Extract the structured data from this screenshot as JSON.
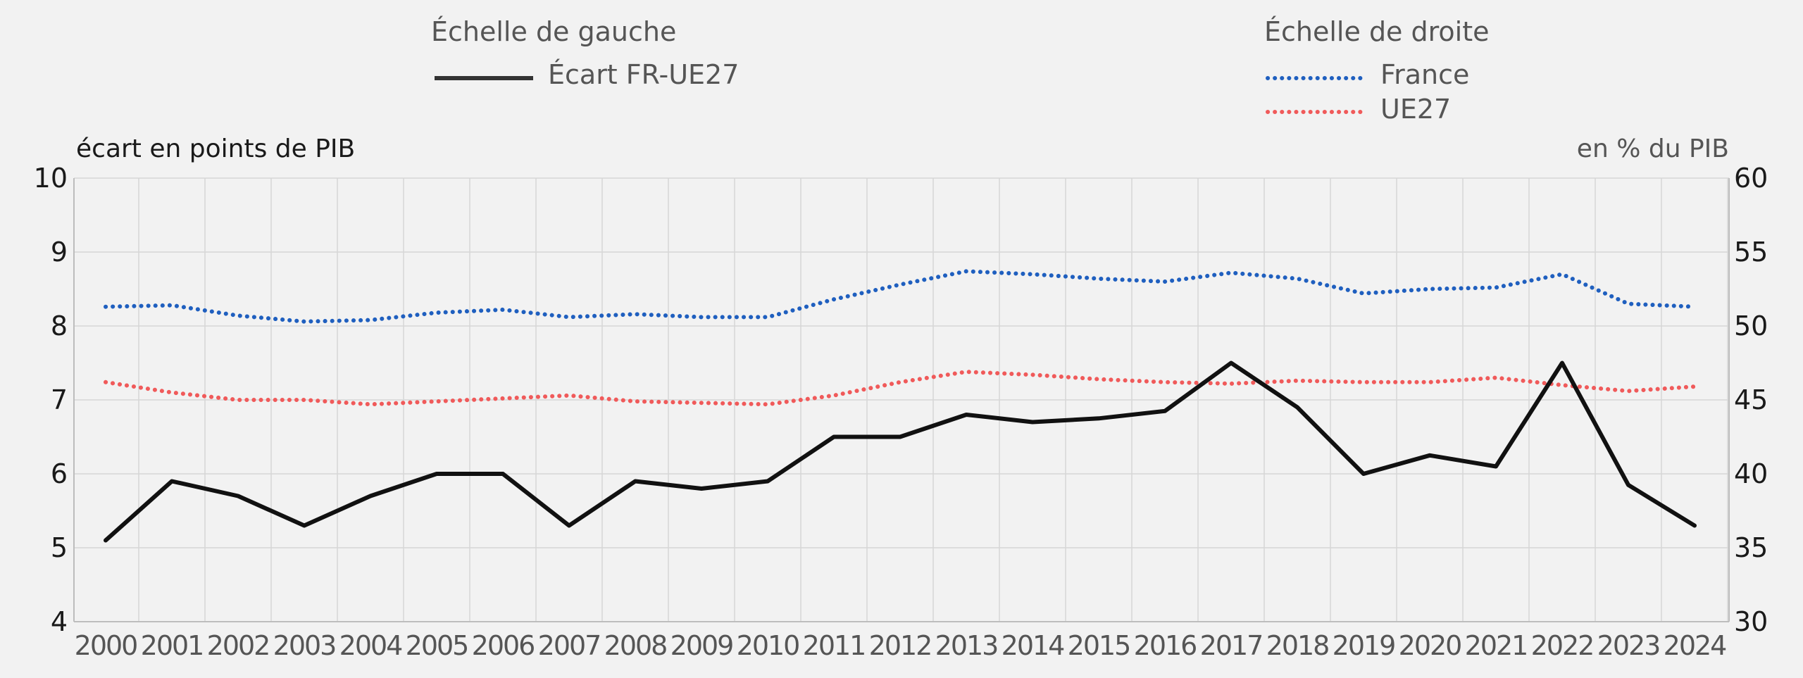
{
  "chart_data": {
    "type": "line",
    "x": [
      "2000",
      "2001",
      "2002",
      "2003",
      "2004",
      "2005",
      "2006",
      "2007",
      "2008",
      "2009",
      "2010",
      "2011",
      "2012",
      "2013",
      "2014",
      "2015",
      "2016",
      "2017",
      "2018",
      "2019",
      "2020",
      "2021",
      "2022",
      "2023",
      "2024"
    ],
    "y_left_label": "écart en points de PIB",
    "y_right_label": "en % du PIB",
    "y_left_range": [
      4,
      10
    ],
    "y_left_ticks": [
      4,
      5,
      6,
      7,
      8,
      9,
      10
    ],
    "y_right_range": [
      30,
      60
    ],
    "y_right_ticks": [
      30,
      35,
      40,
      45,
      50,
      55,
      60
    ],
    "grid": true,
    "legend": {
      "left_title": "Échelle de gauche",
      "right_title": "Échelle de droite"
    },
    "series": [
      {
        "name": "Écart FR-UE27",
        "axis": "left",
        "style": "solid",
        "color": "#111111",
        "values": [
          5.1,
          5.9,
          5.7,
          5.3,
          5.7,
          6.0,
          6.0,
          5.3,
          5.9,
          5.8,
          5.9,
          6.5,
          6.5,
          6.8,
          6.7,
          6.75,
          6.85,
          7.5,
          6.9,
          6.0,
          6.25,
          6.1,
          7.5,
          5.85,
          5.3
        ]
      },
      {
        "name": "France",
        "axis": "right",
        "style": "dotted",
        "color": "#1f5fbf",
        "values": [
          51.3,
          51.4,
          50.7,
          50.3,
          50.4,
          50.9,
          51.1,
          50.6,
          50.8,
          50.6,
          50.6,
          51.8,
          52.8,
          53.7,
          53.5,
          53.2,
          53.0,
          53.6,
          53.2,
          52.2,
          52.5,
          52.6,
          53.5,
          51.5,
          51.3
        ]
      },
      {
        "name": "UE27",
        "axis": "right",
        "style": "dotted",
        "color": "#f05a5a",
        "values": [
          46.2,
          45.5,
          45.0,
          45.0,
          44.7,
          44.9,
          45.1,
          45.3,
          44.9,
          44.8,
          44.7,
          45.3,
          46.2,
          46.9,
          46.7,
          46.4,
          46.2,
          46.1,
          46.3,
          46.2,
          46.2,
          46.5,
          46.0,
          45.6,
          45.9
        ]
      }
    ]
  }
}
